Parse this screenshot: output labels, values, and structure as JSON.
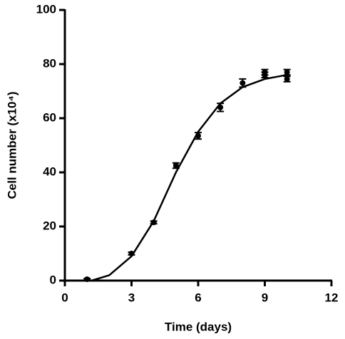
{
  "chart_data": {
    "type": "scatter",
    "x_label": "Time (days)",
    "y_label": "Cell number (x10⁴)",
    "x": [
      1,
      3,
      4,
      5,
      6,
      7,
      8,
      9,
      9,
      10,
      10
    ],
    "values": [
      0.5,
      10,
      21.5,
      42.5,
      53.5,
      64,
      73,
      77,
      76,
      77,
      74.5
    ],
    "errors": [
      0.3,
      0.5,
      0.5,
      1,
      1.2,
      1.5,
      1.5,
      1,
      1,
      1,
      1
    ],
    "fit": {
      "x": [
        1.2,
        2,
        3,
        4,
        5,
        6,
        7,
        8,
        9,
        10
      ],
      "values": [
        0,
        2,
        9,
        22,
        40,
        55,
        65.5,
        71.5,
        74.5,
        76
      ]
    },
    "color": "#000000",
    "xlim": [
      0,
      12
    ],
    "xticks": [
      0,
      3,
      6,
      9,
      12
    ],
    "ylim": [
      0,
      100
    ],
    "yticks": [
      0,
      20,
      40,
      60,
      80,
      100
    ]
  }
}
